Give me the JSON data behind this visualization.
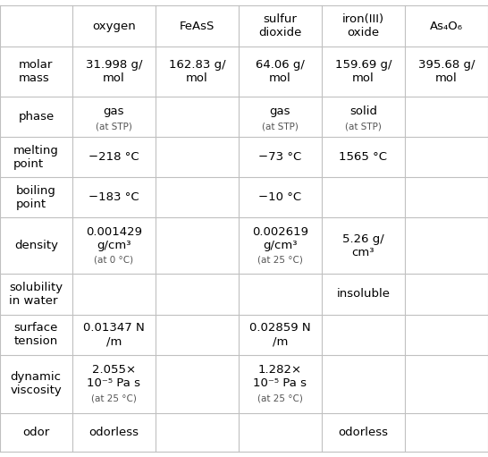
{
  "headers": [
    "",
    "oxygen",
    "FeAsS",
    "sulfur\ndioxide",
    "iron(III)\noxide",
    "As₄O₆"
  ],
  "rows": [
    {
      "label": "molar\nmass",
      "cells": [
        {
          "main": "31.998 g/\nmol",
          "sub": ""
        },
        {
          "main": "162.83 g/\nmol",
          "sub": ""
        },
        {
          "main": "64.06 g/\nmol",
          "sub": ""
        },
        {
          "main": "159.69 g/\nmol",
          "sub": ""
        },
        {
          "main": "395.68 g/\nmol",
          "sub": ""
        }
      ]
    },
    {
      "label": "phase",
      "cells": [
        {
          "main": "gas",
          "sub": "(at STP)"
        },
        {
          "main": "",
          "sub": ""
        },
        {
          "main": "gas",
          "sub": "(at STP)"
        },
        {
          "main": "solid",
          "sub": "(at STP)"
        },
        {
          "main": "",
          "sub": ""
        }
      ]
    },
    {
      "label": "melting\npoint",
      "cells": [
        {
          "main": "−218 °C",
          "sub": ""
        },
        {
          "main": "",
          "sub": ""
        },
        {
          "main": "−73 °C",
          "sub": ""
        },
        {
          "main": "1565 °C",
          "sub": ""
        },
        {
          "main": "",
          "sub": ""
        }
      ]
    },
    {
      "label": "boiling\npoint",
      "cells": [
        {
          "main": "−183 °C",
          "sub": ""
        },
        {
          "main": "",
          "sub": ""
        },
        {
          "main": "−10 °C",
          "sub": ""
        },
        {
          "main": "",
          "sub": ""
        },
        {
          "main": "",
          "sub": ""
        }
      ]
    },
    {
      "label": "density",
      "cells": [
        {
          "main": "0.001429\ng/cm³",
          "sub": "(at 0 °C)"
        },
        {
          "main": "",
          "sub": ""
        },
        {
          "main": "0.002619\ng/cm³",
          "sub": "(at 25 °C)"
        },
        {
          "main": "5.26 g/\ncm³",
          "sub": ""
        },
        {
          "main": "",
          "sub": ""
        }
      ]
    },
    {
      "label": "solubility\nin water",
      "cells": [
        {
          "main": "",
          "sub": ""
        },
        {
          "main": "",
          "sub": ""
        },
        {
          "main": "",
          "sub": ""
        },
        {
          "main": "insoluble",
          "sub": ""
        },
        {
          "main": "",
          "sub": ""
        }
      ]
    },
    {
      "label": "surface\ntension",
      "cells": [
        {
          "main": "0.01347 N\n/m",
          "sub": ""
        },
        {
          "main": "",
          "sub": ""
        },
        {
          "main": "0.02859 N\n/m",
          "sub": ""
        },
        {
          "main": "",
          "sub": ""
        },
        {
          "main": "",
          "sub": ""
        }
      ]
    },
    {
      "label": "dynamic\nviscosity",
      "cells": [
        {
          "main": "2.055×\n10⁻⁵ Pa s",
          "sub": "(at 25 °C)"
        },
        {
          "main": "",
          "sub": ""
        },
        {
          "main": "1.282×\n10⁻⁵ Pa s",
          "sub": "(at 25 °C)"
        },
        {
          "main": "",
          "sub": ""
        },
        {
          "main": "",
          "sub": ""
        }
      ]
    },
    {
      "label": "odor",
      "cells": [
        {
          "main": "odorless",
          "sub": ""
        },
        {
          "main": "",
          "sub": ""
        },
        {
          "main": "",
          "sub": ""
        },
        {
          "main": "odorless",
          "sub": ""
        },
        {
          "main": "",
          "sub": ""
        }
      ]
    }
  ],
  "line_color": "#c0c0c0",
  "header_font_size": 9.5,
  "cell_font_size": 9.5,
  "sub_font_size": 7.5,
  "label_font_size": 9.5,
  "bg_color": "#ffffff",
  "text_color": "#000000",
  "sub_color": "#555555"
}
